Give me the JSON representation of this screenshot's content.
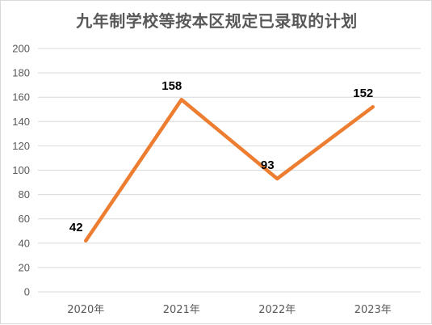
{
  "chart_data": {
    "type": "line",
    "title": "九年制学校等按本区规定已录取的计划",
    "categories": [
      "2020年",
      "2021年",
      "2022年",
      "2023年"
    ],
    "series": [
      {
        "values": [
          42,
          158,
          93,
          152
        ],
        "color": "#ed7d31"
      }
    ],
    "ylim": [
      0,
      200
    ],
    "yticks": [
      0,
      20,
      40,
      60,
      80,
      100,
      120,
      140,
      160,
      180,
      200
    ],
    "grid": true,
    "legend": "none",
    "xlabel": "",
    "ylabel": ""
  }
}
